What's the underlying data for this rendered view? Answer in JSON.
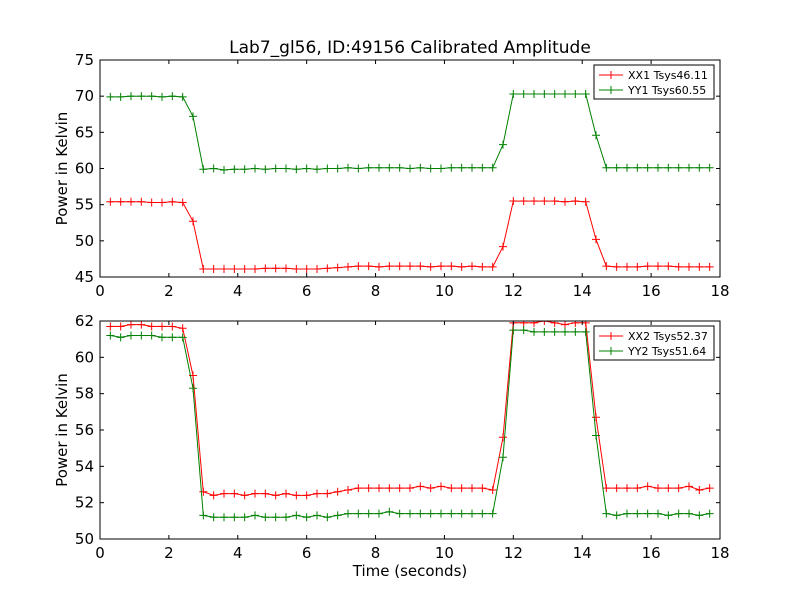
{
  "figure": {
    "title": "Lab7_gl56, ID:49156 Calibrated Amplitude"
  },
  "chart_data": [
    {
      "type": "line",
      "title": "Lab7_gl56, ID:49156 Calibrated Amplitude",
      "xlabel": "",
      "ylabel": "Power in Kelvin",
      "xlim": [
        0,
        18
      ],
      "ylim": [
        45,
        75
      ],
      "x_ticks": [
        0,
        2,
        4,
        6,
        8,
        10,
        12,
        14,
        16,
        18
      ],
      "y_ticks": [
        45,
        50,
        55,
        60,
        65,
        70,
        75
      ],
      "grid": false,
      "legend_position": "top-right",
      "x": [
        0.3,
        0.6,
        0.9,
        1.2,
        1.5,
        1.8,
        2.1,
        2.4,
        2.7,
        3.0,
        3.3,
        3.6,
        3.9,
        4.2,
        4.5,
        4.8,
        5.1,
        5.4,
        5.7,
        6.0,
        6.3,
        6.6,
        6.9,
        7.2,
        7.5,
        7.8,
        8.1,
        8.4,
        8.7,
        9.0,
        9.3,
        9.6,
        9.9,
        10.2,
        10.5,
        10.8,
        11.1,
        11.4,
        11.7,
        12.0,
        12.3,
        12.6,
        12.9,
        13.2,
        13.5,
        13.8,
        14.1,
        14.4,
        14.7,
        15.0,
        15.3,
        15.6,
        15.9,
        16.2,
        16.5,
        16.8,
        17.1,
        17.4,
        17.7
      ],
      "series": [
        {
          "name": "XX1 Tsys46.11",
          "color": "#ff0000",
          "values": [
            55.4,
            55.4,
            55.4,
            55.4,
            55.3,
            55.3,
            55.4,
            55.3,
            52.7,
            46.1,
            46.1,
            46.1,
            46.1,
            46.1,
            46.1,
            46.2,
            46.2,
            46.2,
            46.1,
            46.1,
            46.1,
            46.2,
            46.3,
            46.4,
            46.5,
            46.5,
            46.4,
            46.5,
            46.5,
            46.5,
            46.5,
            46.4,
            46.5,
            46.5,
            46.4,
            46.5,
            46.4,
            46.4,
            49.2,
            55.5,
            55.5,
            55.5,
            55.5,
            55.5,
            55.4,
            55.5,
            55.4,
            50.2,
            46.5,
            46.4,
            46.4,
            46.4,
            46.5,
            46.5,
            46.5,
            46.4,
            46.4,
            46.4,
            46.4
          ]
        },
        {
          "name": "YY1 Tsys60.55",
          "color": "#008000",
          "values": [
            69.9,
            69.9,
            70.0,
            70.0,
            70.0,
            69.9,
            70.0,
            69.9,
            67.2,
            59.9,
            60.0,
            59.8,
            59.9,
            59.9,
            60.0,
            59.9,
            60.0,
            60.0,
            59.9,
            60.0,
            59.9,
            60.0,
            60.0,
            60.1,
            60.0,
            60.1,
            60.1,
            60.1,
            60.1,
            60.0,
            60.1,
            60.0,
            60.0,
            60.1,
            60.1,
            60.1,
            60.1,
            60.1,
            63.3,
            70.3,
            70.3,
            70.3,
            70.3,
            70.3,
            70.3,
            70.3,
            70.3,
            64.6,
            60.1,
            60.1,
            60.1,
            60.1,
            60.1,
            60.1,
            60.1,
            60.1,
            60.1,
            60.1,
            60.1
          ]
        }
      ]
    },
    {
      "type": "line",
      "title": "",
      "xlabel": "Time (seconds)",
      "ylabel": "Power in Kelvin",
      "xlim": [
        0,
        18
      ],
      "ylim": [
        50,
        62
      ],
      "x_ticks": [
        0,
        2,
        4,
        6,
        8,
        10,
        12,
        14,
        16,
        18
      ],
      "y_ticks": [
        50,
        52,
        54,
        56,
        58,
        60,
        62
      ],
      "grid": false,
      "legend_position": "top-right",
      "x": [
        0.3,
        0.6,
        0.9,
        1.2,
        1.5,
        1.8,
        2.1,
        2.4,
        2.7,
        3.0,
        3.3,
        3.6,
        3.9,
        4.2,
        4.5,
        4.8,
        5.1,
        5.4,
        5.7,
        6.0,
        6.3,
        6.6,
        6.9,
        7.2,
        7.5,
        7.8,
        8.1,
        8.4,
        8.7,
        9.0,
        9.3,
        9.6,
        9.9,
        10.2,
        10.5,
        10.8,
        11.1,
        11.4,
        11.7,
        12.0,
        12.3,
        12.6,
        12.9,
        13.2,
        13.5,
        13.8,
        14.1,
        14.4,
        14.7,
        15.0,
        15.3,
        15.6,
        15.9,
        16.2,
        16.5,
        16.8,
        17.1,
        17.4,
        17.7
      ],
      "series": [
        {
          "name": "XX2 Tsys52.37",
          "color": "#ff0000",
          "values": [
            61.7,
            61.7,
            61.8,
            61.8,
            61.7,
            61.7,
            61.7,
            61.6,
            59.0,
            52.6,
            52.4,
            52.5,
            52.5,
            52.4,
            52.5,
            52.5,
            52.4,
            52.5,
            52.4,
            52.4,
            52.5,
            52.5,
            52.6,
            52.7,
            52.8,
            52.8,
            52.8,
            52.8,
            52.8,
            52.8,
            52.9,
            52.8,
            52.9,
            52.8,
            52.8,
            52.8,
            52.8,
            52.7,
            55.6,
            61.9,
            61.9,
            61.9,
            62.0,
            61.9,
            61.8,
            61.9,
            61.9,
            56.7,
            52.8,
            52.8,
            52.8,
            52.8,
            52.9,
            52.8,
            52.8,
            52.8,
            52.9,
            52.7,
            52.8
          ]
        },
        {
          "name": "YY2 Tsys51.64",
          "color": "#008000",
          "values": [
            61.2,
            61.1,
            61.2,
            61.2,
            61.2,
            61.1,
            61.1,
            61.1,
            58.3,
            51.3,
            51.2,
            51.2,
            51.2,
            51.2,
            51.3,
            51.2,
            51.2,
            51.2,
            51.3,
            51.2,
            51.3,
            51.2,
            51.3,
            51.4,
            51.4,
            51.4,
            51.4,
            51.5,
            51.4,
            51.4,
            51.4,
            51.4,
            51.4,
            51.4,
            51.4,
            51.4,
            51.4,
            51.4,
            54.5,
            61.5,
            61.5,
            61.4,
            61.4,
            61.4,
            61.4,
            61.4,
            61.4,
            55.7,
            51.4,
            51.3,
            51.4,
            51.4,
            51.4,
            51.4,
            51.3,
            51.4,
            51.4,
            51.3,
            51.4
          ]
        }
      ]
    }
  ]
}
